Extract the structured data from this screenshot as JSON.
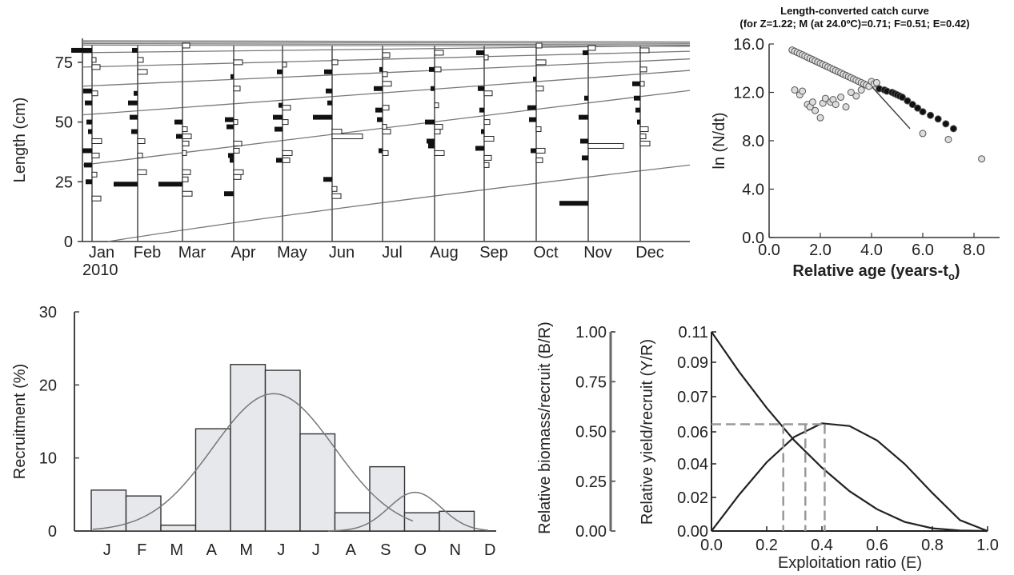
{
  "chart_data": [
    {
      "type": "length-frequency",
      "panel": "a",
      "ylabel": "Length (cm)",
      "ylim": [
        0,
        85
      ],
      "yticks": [
        "0",
        "25",
        "50",
        "75"
      ],
      "months": [
        "Jan",
        "Feb",
        "Mar",
        "Apr",
        "May",
        "Jun",
        "Jul",
        "Aug",
        "Sep",
        "Oct",
        "Nov",
        "Dec"
      ],
      "year": "2010",
      "growth_curve_starts": [
        0,
        32,
        53,
        65,
        73,
        79
      ]
    },
    {
      "type": "scatter",
      "panel": "b",
      "title": "Length-converted catch curve",
      "subtitle": "(for Z=1.22; M (at 24.0ºC)=0.71; F=0.51; E=0.42)",
      "xlabel": "Relative age (years-t",
      "xlabel_sub": "o",
      "xlabel_end": ")",
      "ylabel": "ln (N/dt)",
      "xlim": [
        0,
        9
      ],
      "ylim": [
        0,
        16
      ],
      "xticks": [
        "0.0",
        "2.0",
        "4.0",
        "6.0",
        "8.0"
      ],
      "yticks": [
        "0.0",
        "4.0",
        "8.0",
        "12.0",
        "16.0"
      ],
      "series": [
        {
          "role": "excluded",
          "x": [
            0.9,
            1.0,
            1.1,
            1.2,
            1.3,
            1.4,
            1.5,
            1.6,
            1.7,
            1.8,
            1.9,
            2.0,
            2.1,
            2.2,
            2.3,
            2.4,
            2.5,
            2.6,
            2.7,
            2.8,
            2.9,
            3.0,
            3.1,
            3.2,
            3.3,
            3.4,
            3.5,
            3.6,
            3.7,
            3.8,
            3.9,
            4.0,
            4.1,
            4.2
          ],
          "y": [
            15.5,
            15.4,
            15.3,
            15.2,
            15.1,
            15.0,
            14.9,
            14.8,
            14.7,
            14.6,
            14.5,
            14.4,
            14.3,
            14.2,
            14.1,
            14.0,
            13.9,
            13.8,
            13.7,
            13.6,
            13.5,
            13.4,
            13.3,
            13.2,
            13.1,
            13.0,
            12.9,
            12.8,
            12.7,
            12.6,
            12.5,
            12.9,
            12.7,
            12.8
          ]
        },
        {
          "role": "excluded",
          "x": [
            1.0,
            1.2,
            1.3,
            1.5,
            1.6,
            1.7,
            1.8,
            2.0,
            2.1,
            2.2,
            2.4,
            2.5,
            2.6,
            2.8,
            3.0,
            3.2,
            3.4,
            3.6
          ],
          "y": [
            12.2,
            11.8,
            12.1,
            11.0,
            10.8,
            11.2,
            10.5,
            9.9,
            11.1,
            11.5,
            11.2,
            11.4,
            11.0,
            11.6,
            10.8,
            12.0,
            11.7,
            12.2
          ]
        },
        {
          "role": "used",
          "x": [
            4.3,
            4.5,
            4.6,
            4.8,
            4.9,
            5.0,
            5.1,
            5.2,
            5.4,
            5.6,
            5.8,
            6.0,
            6.3,
            6.6,
            6.9,
            7.2
          ],
          "y": [
            12.3,
            12.2,
            12.1,
            12.0,
            11.9,
            11.8,
            11.7,
            11.6,
            11.3,
            11.0,
            10.7,
            10.4,
            10.1,
            9.8,
            9.4,
            9.0
          ]
        },
        {
          "role": "outliers",
          "x": [
            6.0,
            7.0,
            8.3
          ],
          "y": [
            8.6,
            8.1,
            6.5
          ]
        }
      ],
      "regression": {
        "x": [
          4.0,
          5.5
        ],
        "y": [
          12.5,
          9.0
        ]
      }
    },
    {
      "type": "bar",
      "panel": "c",
      "ylabel": "Recruitment (%)",
      "categories": [
        "J",
        "F",
        "M",
        "A",
        "M",
        "J",
        "J",
        "A",
        "S",
        "O",
        "N",
        "D"
      ],
      "values": [
        5.6,
        4.8,
        0.8,
        14.0,
        22.8,
        22.0,
        13.3,
        2.5,
        8.8,
        2.5,
        2.7,
        0
      ],
      "ylim": [
        0,
        30
      ],
      "yticks": [
        "0",
        "10",
        "20",
        "30"
      ]
    },
    {
      "type": "line",
      "panel": "d",
      "xlabel": "Exploitation ratio (E)",
      "ylabel_left": "Relative biomass/recruit (B/R)",
      "ylabel_right": "Relative yield/recruit (Y/R)",
      "xlim": [
        0,
        1
      ],
      "ylim_left": [
        0,
        1
      ],
      "ylim_right": [
        0,
        0.11
      ],
      "xticks": [
        "0.0",
        "0.2",
        "0.4",
        "0.6",
        "0.8",
        "1.0"
      ],
      "yticks_left": [
        "0.00",
        "0.25",
        "0.50",
        "0.75",
        "1.00"
      ],
      "yticks_right": [
        "0.00",
        "0.02",
        "0.04",
        "0.06",
        "0.07",
        "0.09",
        "0.11"
      ],
      "series": [
        {
          "name": "",
          "x": [
            0,
            0.1,
            0.2,
            0.3,
            0.4,
            0.5,
            0.6,
            0.7,
            0.8,
            0.9,
            1.0
          ],
          "y": [
            0.11,
            0.088,
            0.068,
            0.05,
            0.035,
            0.022,
            0.012,
            0.005,
            0.0015,
            0.0003,
            0
          ]
        },
        {
          "name": "",
          "x": [
            0,
            0.1,
            0.2,
            0.3,
            0.4,
            0.5,
            0.6,
            0.7,
            0.8,
            0.9,
            1.0
          ],
          "y": [
            0,
            0.02,
            0.038,
            0.052,
            0.0595,
            0.058,
            0.05,
            0.037,
            0.021,
            0.006,
            0
          ]
        }
      ],
      "reference_E": [
        0.26,
        0.34,
        0.41
      ],
      "reference_Y": 0.059
    }
  ]
}
